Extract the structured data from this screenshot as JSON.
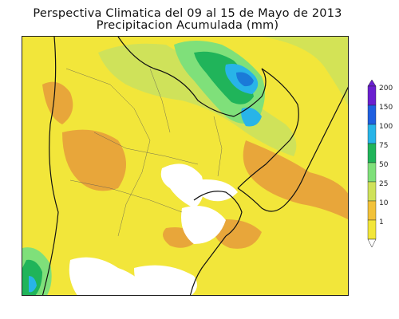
{
  "header": {
    "title": "Perspectiva Climatica del 09 al 15 de Mayo de 2013",
    "subtitle": "Precipitacion Acumulada (mm)"
  },
  "legend": {
    "labels": [
      "200",
      "150",
      "100",
      "75",
      "50",
      "25",
      "10",
      "1"
    ],
    "colors": [
      "#6a1fd0",
      "#1f5fe0",
      "#28b4e8",
      "#20b45a",
      "#7fe07a",
      "#cfe25a",
      "#f2c23a",
      "#f2e63a"
    ],
    "heavy_rain_color": "#1a7ad8",
    "dry_color": "#ffffff",
    "orange_color": "#e8a63a"
  }
}
